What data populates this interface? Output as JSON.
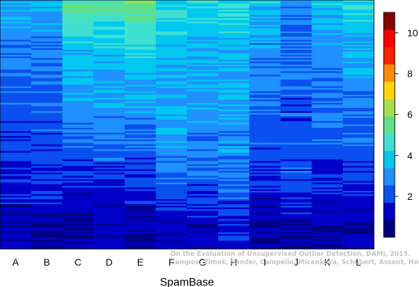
{
  "chart_data": {
    "type": "heatmap",
    "title": "",
    "xlabel": "SpamBase",
    "ylabel": "",
    "categories": [
      "A",
      "B",
      "C",
      "D",
      "E",
      "F",
      "G",
      "H",
      "I",
      "J",
      "K",
      "L"
    ],
    "color_scale": {
      "range": [
        0,
        11
      ],
      "ticks": [
        2,
        4,
        6,
        8,
        10
      ],
      "palette": [
        "#000080",
        "#0000c8",
        "#0a4ff0",
        "#1e90ff",
        "#00c8f0",
        "#40e0d0",
        "#5ee08a",
        "#a8e04a",
        "#ffd500",
        "#ff8c00",
        "#ff2000",
        "#ff0000",
        "#8b0000"
      ]
    },
    "column_profiles": {
      "note_level": "approximate score level at rank fraction 0..1 (top to bottom)",
      "fractions": [
        0,
        0.1,
        0.25,
        0.45,
        0.6,
        0.75,
        0.9,
        1
      ],
      "levels": [
        [
          3.6,
          3.0,
          2.6,
          2.2,
          1.9,
          1.4,
          1.0,
          0.9
        ],
        [
          3.6,
          3.0,
          2.6,
          2.2,
          2.0,
          1.5,
          1.0,
          0.9
        ],
        [
          5.5,
          4.5,
          3.6,
          2.8,
          2.2,
          1.4,
          0.9,
          0.8
        ],
        [
          5.3,
          4.4,
          3.6,
          3.0,
          2.4,
          1.5,
          0.9,
          0.8
        ],
        [
          5.8,
          4.8,
          3.8,
          3.0,
          2.4,
          1.5,
          0.9,
          0.8
        ],
        [
          4.5,
          4.0,
          3.5,
          3.3,
          3.0,
          2.3,
          1.3,
          1.0
        ],
        [
          4.2,
          3.8,
          3.4,
          3.1,
          2.8,
          2.1,
          1.3,
          1.0
        ],
        [
          4.3,
          3.9,
          3.5,
          3.2,
          2.9,
          2.3,
          1.6,
          1.3
        ],
        [
          3.8,
          3.3,
          2.8,
          2.4,
          2.1,
          1.5,
          1.0,
          0.8
        ],
        [
          2.9,
          2.6,
          2.3,
          2.1,
          2.3,
          2.0,
          1.0,
          0.8
        ],
        [
          3.8,
          3.3,
          2.8,
          2.5,
          2.1,
          1.5,
          1.0,
          0.8
        ],
        [
          4.3,
          3.8,
          3.2,
          2.6,
          2.2,
          1.5,
          1.0,
          0.8
        ]
      ]
    },
    "credit_lines": [
      "On the Evaluation of Unsupervised Outlier Detection. DAMI, 2015.",
      "Campos, Zimek, Sander, Campello, Micenkova, Schubert, Assent, Houle"
    ]
  }
}
